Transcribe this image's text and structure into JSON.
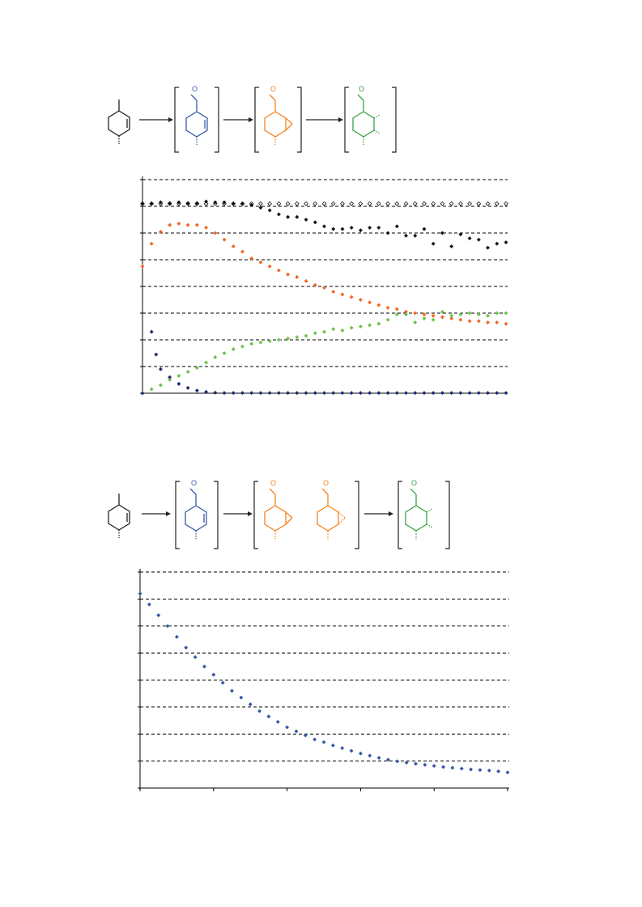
{
  "colors": {
    "black": "#111111",
    "open": "#333333",
    "orange": "#f26522",
    "green": "#6cc24a",
    "navy": "#1f2a6e",
    "blue": "#3556a8",
    "grid": "#000000",
    "scheme_blue": "#3a5ba8",
    "scheme_orange": "#f58220",
    "scheme_green": "#3aa34a"
  },
  "scheme1": {
    "o_label": "O"
  },
  "scheme2": {
    "o_label": "O"
  },
  "chart_data": [
    {
      "type": "scatter",
      "title": "",
      "xlabel": "",
      "ylabel": "",
      "xlim": [
        0,
        40
      ],
      "ylim": [
        0,
        8
      ],
      "grid": true,
      "series": [
        {
          "color": "#111111",
          "marker": "open-diamond",
          "x": [
            0,
            1,
            2,
            3,
            4,
            5,
            6,
            7,
            8,
            9,
            10,
            11,
            12,
            13,
            14,
            15,
            16,
            17,
            18,
            19,
            20,
            21,
            22,
            23,
            24,
            25,
            26,
            27,
            28,
            29,
            30,
            31,
            32,
            33,
            34,
            35,
            36,
            37,
            38,
            39,
            40
          ],
          "y": [
            7.1,
            7.1,
            7.1,
            7.1,
            7.1,
            7.1,
            7.1,
            7.1,
            7.1,
            7.1,
            7.1,
            7.1,
            7.1,
            7.1,
            7.1,
            7.1,
            7.1,
            7.1,
            7.1,
            7.1,
            7.1,
            7.1,
            7.1,
            7.1,
            7.1,
            7.1,
            7.1,
            7.1,
            7.1,
            7.1,
            7.1,
            7.1,
            7.1,
            7.1,
            7.1,
            7.1,
            7.1,
            7.1,
            7.1,
            7.1,
            7.1
          ]
        },
        {
          "color": "#111111",
          "marker": "diamond",
          "x": [
            0,
            1,
            2,
            3,
            4,
            5,
            6,
            7,
            8,
            9,
            10,
            11,
            12,
            13,
            14,
            15,
            16,
            17,
            18,
            19,
            20,
            21,
            22,
            23,
            24,
            25,
            26,
            27,
            28,
            29,
            30,
            31,
            32,
            33,
            34,
            35,
            36,
            37,
            38,
            39,
            40
          ],
          "y": [
            7.1,
            7.1,
            7.15,
            7.12,
            7.15,
            7.12,
            7.12,
            7.18,
            7.15,
            7.15,
            7.1,
            7.1,
            7.05,
            6.95,
            6.85,
            6.7,
            6.6,
            6.6,
            6.5,
            6.4,
            6.25,
            6.15,
            6.15,
            6.2,
            6.1,
            6.2,
            6.2,
            6.0,
            6.25,
            5.9,
            5.9,
            6.15,
            5.6,
            6.0,
            5.5,
            5.95,
            5.8,
            5.75,
            5.45,
            5.6,
            5.65
          ]
        },
        {
          "color": "#f26522",
          "marker": "diamond",
          "x": [
            0,
            1,
            2,
            3,
            4,
            5,
            6,
            7,
            8,
            9,
            10,
            11,
            12,
            13,
            14,
            15,
            16,
            17,
            18,
            19,
            20,
            21,
            22,
            23,
            24,
            25,
            26,
            27,
            28,
            29,
            30,
            31,
            32,
            33,
            34,
            35,
            36,
            37,
            38,
            39,
            40
          ],
          "y": [
            4.75,
            5.6,
            6.05,
            6.3,
            6.35,
            6.3,
            6.3,
            6.2,
            6.0,
            5.75,
            5.5,
            5.3,
            5.05,
            4.9,
            4.75,
            4.6,
            4.45,
            4.35,
            4.2,
            4.05,
            3.95,
            3.8,
            3.7,
            3.6,
            3.5,
            3.4,
            3.3,
            3.2,
            3.15,
            3.05,
            3.0,
            2.95,
            2.9,
            2.85,
            2.8,
            2.75,
            2.7,
            2.7,
            2.65,
            2.65,
            2.6
          ]
        },
        {
          "color": "#6cc24a",
          "marker": "diamond",
          "x": [
            0,
            1,
            2,
            3,
            4,
            5,
            6,
            7,
            8,
            9,
            10,
            11,
            12,
            13,
            14,
            15,
            16,
            17,
            18,
            19,
            20,
            21,
            22,
            23,
            24,
            25,
            26,
            27,
            28,
            29,
            30,
            31,
            32,
            33,
            34,
            35,
            36,
            37,
            38,
            39,
            40
          ],
          "y": [
            0.0,
            0.15,
            0.3,
            0.5,
            0.65,
            0.8,
            0.95,
            1.15,
            1.35,
            1.5,
            1.65,
            1.75,
            1.85,
            1.9,
            1.95,
            2.0,
            2.05,
            2.1,
            2.15,
            2.25,
            2.3,
            2.4,
            2.35,
            2.45,
            2.5,
            2.55,
            2.6,
            2.75,
            2.95,
            2.95,
            2.65,
            2.8,
            2.75,
            3.05,
            2.9,
            2.95,
            3.0,
            2.95,
            2.9,
            3.0,
            3.0
          ]
        },
        {
          "color": "#1f2a6e",
          "marker": "diamond",
          "x": [
            0,
            1,
            1.5,
            2,
            3,
            4,
            5,
            6,
            7,
            8,
            9,
            10,
            11,
            12,
            13,
            14,
            15,
            16,
            17,
            18,
            19,
            20,
            21,
            22,
            23,
            24,
            25,
            26,
            27,
            28,
            29,
            30,
            31,
            32,
            33,
            34,
            35,
            36,
            37,
            38,
            39,
            40
          ],
          "y": [
            0.0,
            2.3,
            1.45,
            0.9,
            0.6,
            0.35,
            0.2,
            0.1,
            0.05,
            0.02,
            0.01,
            0.01,
            0.01,
            0.01,
            0.01,
            0.01,
            0.01,
            0.01,
            0.01,
            0.01,
            0.01,
            0.01,
            0.01,
            0.01,
            0.01,
            0.01,
            0.01,
            0.01,
            0.01,
            0.01,
            0.01,
            0.01,
            0.01,
            0.01,
            0.01,
            0.01,
            0.01,
            0.01,
            0.01,
            0.01,
            0.01,
            0.01
          ]
        }
      ]
    },
    {
      "type": "scatter",
      "title": "",
      "xlabel": "",
      "ylabel": "",
      "xlim": [
        0,
        40
      ],
      "ylim": [
        0,
        8
      ],
      "xticks": [
        0,
        8,
        16,
        24,
        32,
        40
      ],
      "grid": true,
      "series": [
        {
          "color": "#3556a8",
          "marker": "diamond",
          "x": [
            0,
            1,
            2,
            3,
            4,
            5,
            6,
            7,
            8,
            9,
            10,
            11,
            12,
            13,
            14,
            15,
            16,
            17,
            18,
            19,
            20,
            21,
            22,
            23,
            24,
            25,
            26,
            27,
            28,
            29,
            30,
            31,
            32,
            33,
            34,
            35,
            36,
            37,
            38,
            39,
            40
          ],
          "y": [
            7.2,
            6.8,
            6.4,
            6.0,
            5.6,
            5.2,
            4.85,
            4.5,
            4.2,
            3.9,
            3.6,
            3.35,
            3.1,
            2.85,
            2.65,
            2.45,
            2.25,
            2.1,
            1.95,
            1.8,
            1.7,
            1.58,
            1.48,
            1.38,
            1.28,
            1.2,
            1.12,
            1.05,
            0.99,
            0.94,
            0.9,
            0.86,
            0.82,
            0.78,
            0.75,
            0.72,
            0.69,
            0.67,
            0.65,
            0.62,
            0.58
          ]
        }
      ]
    }
  ]
}
